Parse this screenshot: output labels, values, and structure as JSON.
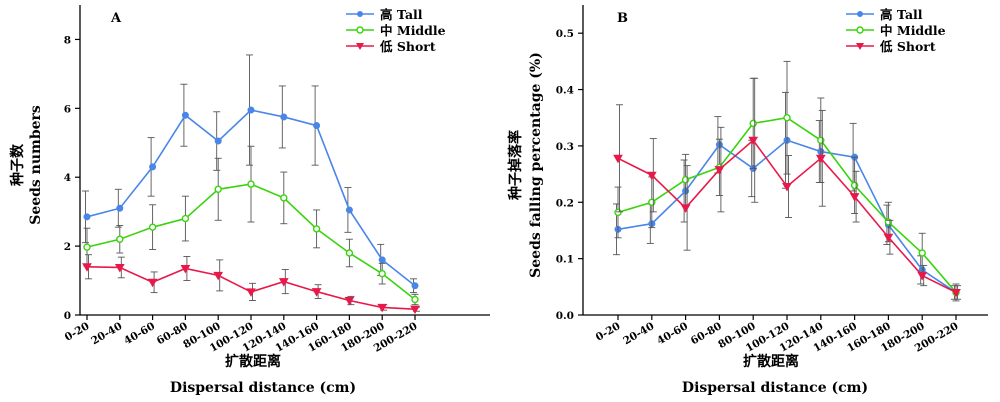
{
  "chart_data": [
    {
      "type": "line",
      "panel_label": "A",
      "ylabel_cn": "种子数",
      "ylabel": "Seeds numbers",
      "xlabel_cn": "扩散距离",
      "xlabel": "Dispersal distance (cm)",
      "categories": [
        "0-20",
        "20-40",
        "40-60",
        "60-80",
        "80-100",
        "100-120",
        "120-140",
        "140-160",
        "160-180",
        "180-200",
        "200-220"
      ],
      "ylim": [
        0,
        9
      ],
      "yticks": [
        0,
        2,
        4,
        6,
        8
      ],
      "ytick_labels": [
        "0",
        "2",
        "4",
        "6",
        "8"
      ],
      "grid": false,
      "legend_position": "top-right",
      "series": [
        {
          "name": "高 Tall",
          "color": "#4a86e8",
          "marker": "circle",
          "values": [
            2.85,
            3.1,
            4.3,
            5.8,
            5.05,
            5.95,
            5.75,
            5.5,
            3.05,
            1.6,
            0.85
          ],
          "errors": [
            0.75,
            0.55,
            0.85,
            0.9,
            0.85,
            1.6,
            0.9,
            1.15,
            0.65,
            0.45,
            0.2
          ]
        },
        {
          "name": "中 Middle",
          "color": "#39d30d",
          "marker": "open-circle",
          "values": [
            1.97,
            2.2,
            2.55,
            2.8,
            3.65,
            3.8,
            3.4,
            2.5,
            1.8,
            1.2,
            0.45
          ],
          "errors": [
            0.55,
            0.4,
            0.65,
            0.65,
            0.9,
            1.1,
            0.75,
            0.55,
            0.4,
            0.3,
            0.15
          ]
        },
        {
          "name": "低 Short",
          "color": "#e8194a",
          "marker": "triangle-down",
          "values": [
            1.4,
            1.38,
            0.95,
            1.35,
            1.15,
            0.67,
            0.97,
            0.68,
            0.42,
            0.22,
            0.17
          ],
          "errors": [
            0.35,
            0.3,
            0.3,
            0.35,
            0.45,
            0.25,
            0.35,
            0.2,
            0.12,
            0.08,
            0.06
          ]
        }
      ]
    },
    {
      "type": "line",
      "panel_label": "B",
      "ylabel_cn": "种子掉落率",
      "ylabel": "Seeds falling percentage (%)",
      "xlabel_cn": "扩散距离",
      "xlabel": "Dispersal distance (cm)",
      "categories": [
        "0-20",
        "20-40",
        "40-60",
        "60-80",
        "80-100",
        "100-120",
        "120-140",
        "140-160",
        "160-180",
        "180-200",
        "200-220"
      ],
      "ylim": [
        0,
        0.55
      ],
      "yticks": [
        0,
        0.1,
        0.2,
        0.3,
        0.4,
        0.5
      ],
      "ytick_labels": [
        "0.0",
        "0.1",
        "0.2",
        "0.3",
        "0.4",
        "0.5"
      ],
      "grid": false,
      "legend_position": "top-right",
      "series": [
        {
          "name": "高 Tall",
          "color": "#4a86e8",
          "marker": "circle",
          "values": [
            0.152,
            0.162,
            0.22,
            0.302,
            0.26,
            0.31,
            0.29,
            0.28,
            0.16,
            0.08,
            0.04
          ],
          "errors": [
            0.045,
            0.035,
            0.055,
            0.05,
            0.05,
            0.085,
            0.055,
            0.06,
            0.035,
            0.025,
            0.012
          ]
        },
        {
          "name": "中 Middle",
          "color": "#39d30d",
          "marker": "open-circle",
          "values": [
            0.182,
            0.2,
            0.24,
            0.262,
            0.34,
            0.35,
            0.31,
            0.23,
            0.165,
            0.11,
            0.04
          ],
          "errors": [
            0.045,
            0.045,
            0.045,
            0.05,
            0.08,
            0.1,
            0.075,
            0.05,
            0.035,
            0.035,
            0.015
          ]
        },
        {
          "name": "低 Short",
          "color": "#e8194a",
          "marker": "triangle-down",
          "values": [
            0.278,
            0.248,
            0.19,
            0.258,
            0.31,
            0.228,
            0.278,
            0.21,
            0.138,
            0.07,
            0.04
          ],
          "errors": [
            0.095,
            0.065,
            0.075,
            0.075,
            0.11,
            0.055,
            0.085,
            0.045,
            0.03,
            0.018,
            0.012
          ]
        }
      ]
    }
  ]
}
